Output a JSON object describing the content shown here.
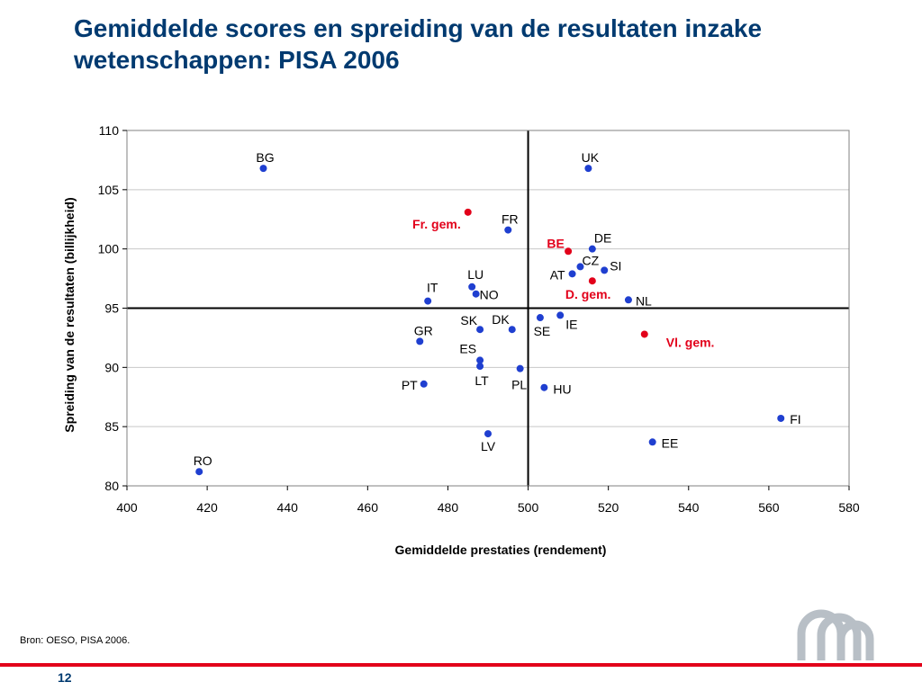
{
  "slide": {
    "title": "Gemiddelde scores en spreiding van de resultaten inzake wetenschappen: PISA 2006",
    "source": "Bron: OESO, PISA 2006.",
    "page_number": "12"
  },
  "colors": {
    "country": "#1f3fd0",
    "average": "#e2001a",
    "title": "#003a70"
  },
  "chart_data": {
    "type": "scatter",
    "title": "",
    "xlabel": "Gemiddelde prestaties (rendement)",
    "ylabel": "Spreiding van de resultaten (billijkheid)",
    "xlim": [
      400,
      580
    ],
    "ylim": [
      80,
      110
    ],
    "xticks": [
      400,
      420,
      440,
      460,
      480,
      500,
      520,
      540,
      560,
      580
    ],
    "yticks": [
      80,
      85,
      90,
      95,
      100,
      105,
      110
    ],
    "reference_lines": {
      "x": 500,
      "y": 95
    },
    "grid": "horizontal",
    "legend": "none",
    "points": [
      {
        "label": "BG",
        "x": 434,
        "y": 106.8,
        "kind": "country"
      },
      {
        "label": "UK",
        "x": 515,
        "y": 106.8,
        "kind": "country"
      },
      {
        "label": "FR",
        "x": 495,
        "y": 101.6,
        "kind": "country"
      },
      {
        "label": "DE",
        "x": 516,
        "y": 100.0,
        "kind": "country"
      },
      {
        "label": "CZ",
        "x": 513,
        "y": 98.5,
        "kind": "country"
      },
      {
        "label": "SI",
        "x": 519,
        "y": 98.2,
        "kind": "country"
      },
      {
        "label": "AT",
        "x": 511,
        "y": 97.9,
        "kind": "country"
      },
      {
        "label": "LU",
        "x": 486,
        "y": 96.8,
        "kind": "country"
      },
      {
        "label": "NO",
        "x": 487,
        "y": 96.2,
        "kind": "country"
      },
      {
        "label": "IT",
        "x": 475,
        "y": 95.6,
        "kind": "country"
      },
      {
        "label": "NL",
        "x": 525,
        "y": 95.7,
        "kind": "country"
      },
      {
        "label": "SK",
        "x": 488,
        "y": 93.2,
        "kind": "country"
      },
      {
        "label": "DK",
        "x": 496,
        "y": 93.2,
        "kind": "country"
      },
      {
        "label": "SE",
        "x": 503,
        "y": 94.2,
        "kind": "country"
      },
      {
        "label": "IE",
        "x": 508,
        "y": 94.4,
        "kind": "country"
      },
      {
        "label": "GR",
        "x": 473,
        "y": 92.2,
        "kind": "country"
      },
      {
        "label": "ES",
        "x": 488,
        "y": 90.6,
        "kind": "country"
      },
      {
        "label": "LT",
        "x": 488,
        "y": 90.1,
        "kind": "country"
      },
      {
        "label": "PL",
        "x": 498,
        "y": 89.9,
        "kind": "country"
      },
      {
        "label": "PT",
        "x": 474,
        "y": 88.6,
        "kind": "country"
      },
      {
        "label": "HU",
        "x": 504,
        "y": 88.3,
        "kind": "country"
      },
      {
        "label": "LV",
        "x": 490,
        "y": 84.4,
        "kind": "country"
      },
      {
        "label": "FI",
        "x": 563,
        "y": 85.7,
        "kind": "country"
      },
      {
        "label": "EE",
        "x": 531,
        "y": 83.7,
        "kind": "country"
      },
      {
        "label": "RO",
        "x": 418,
        "y": 81.2,
        "kind": "country"
      },
      {
        "label": "Fr. gem.",
        "x": 485,
        "y": 103.1,
        "kind": "average"
      },
      {
        "label": "BE",
        "x": 510,
        "y": 99.8,
        "kind": "average"
      },
      {
        "label": "D. gem.",
        "x": 516,
        "y": 97.3,
        "kind": "average"
      },
      {
        "label": "Vl. gem.",
        "x": 529,
        "y": 92.8,
        "kind": "average"
      }
    ]
  }
}
